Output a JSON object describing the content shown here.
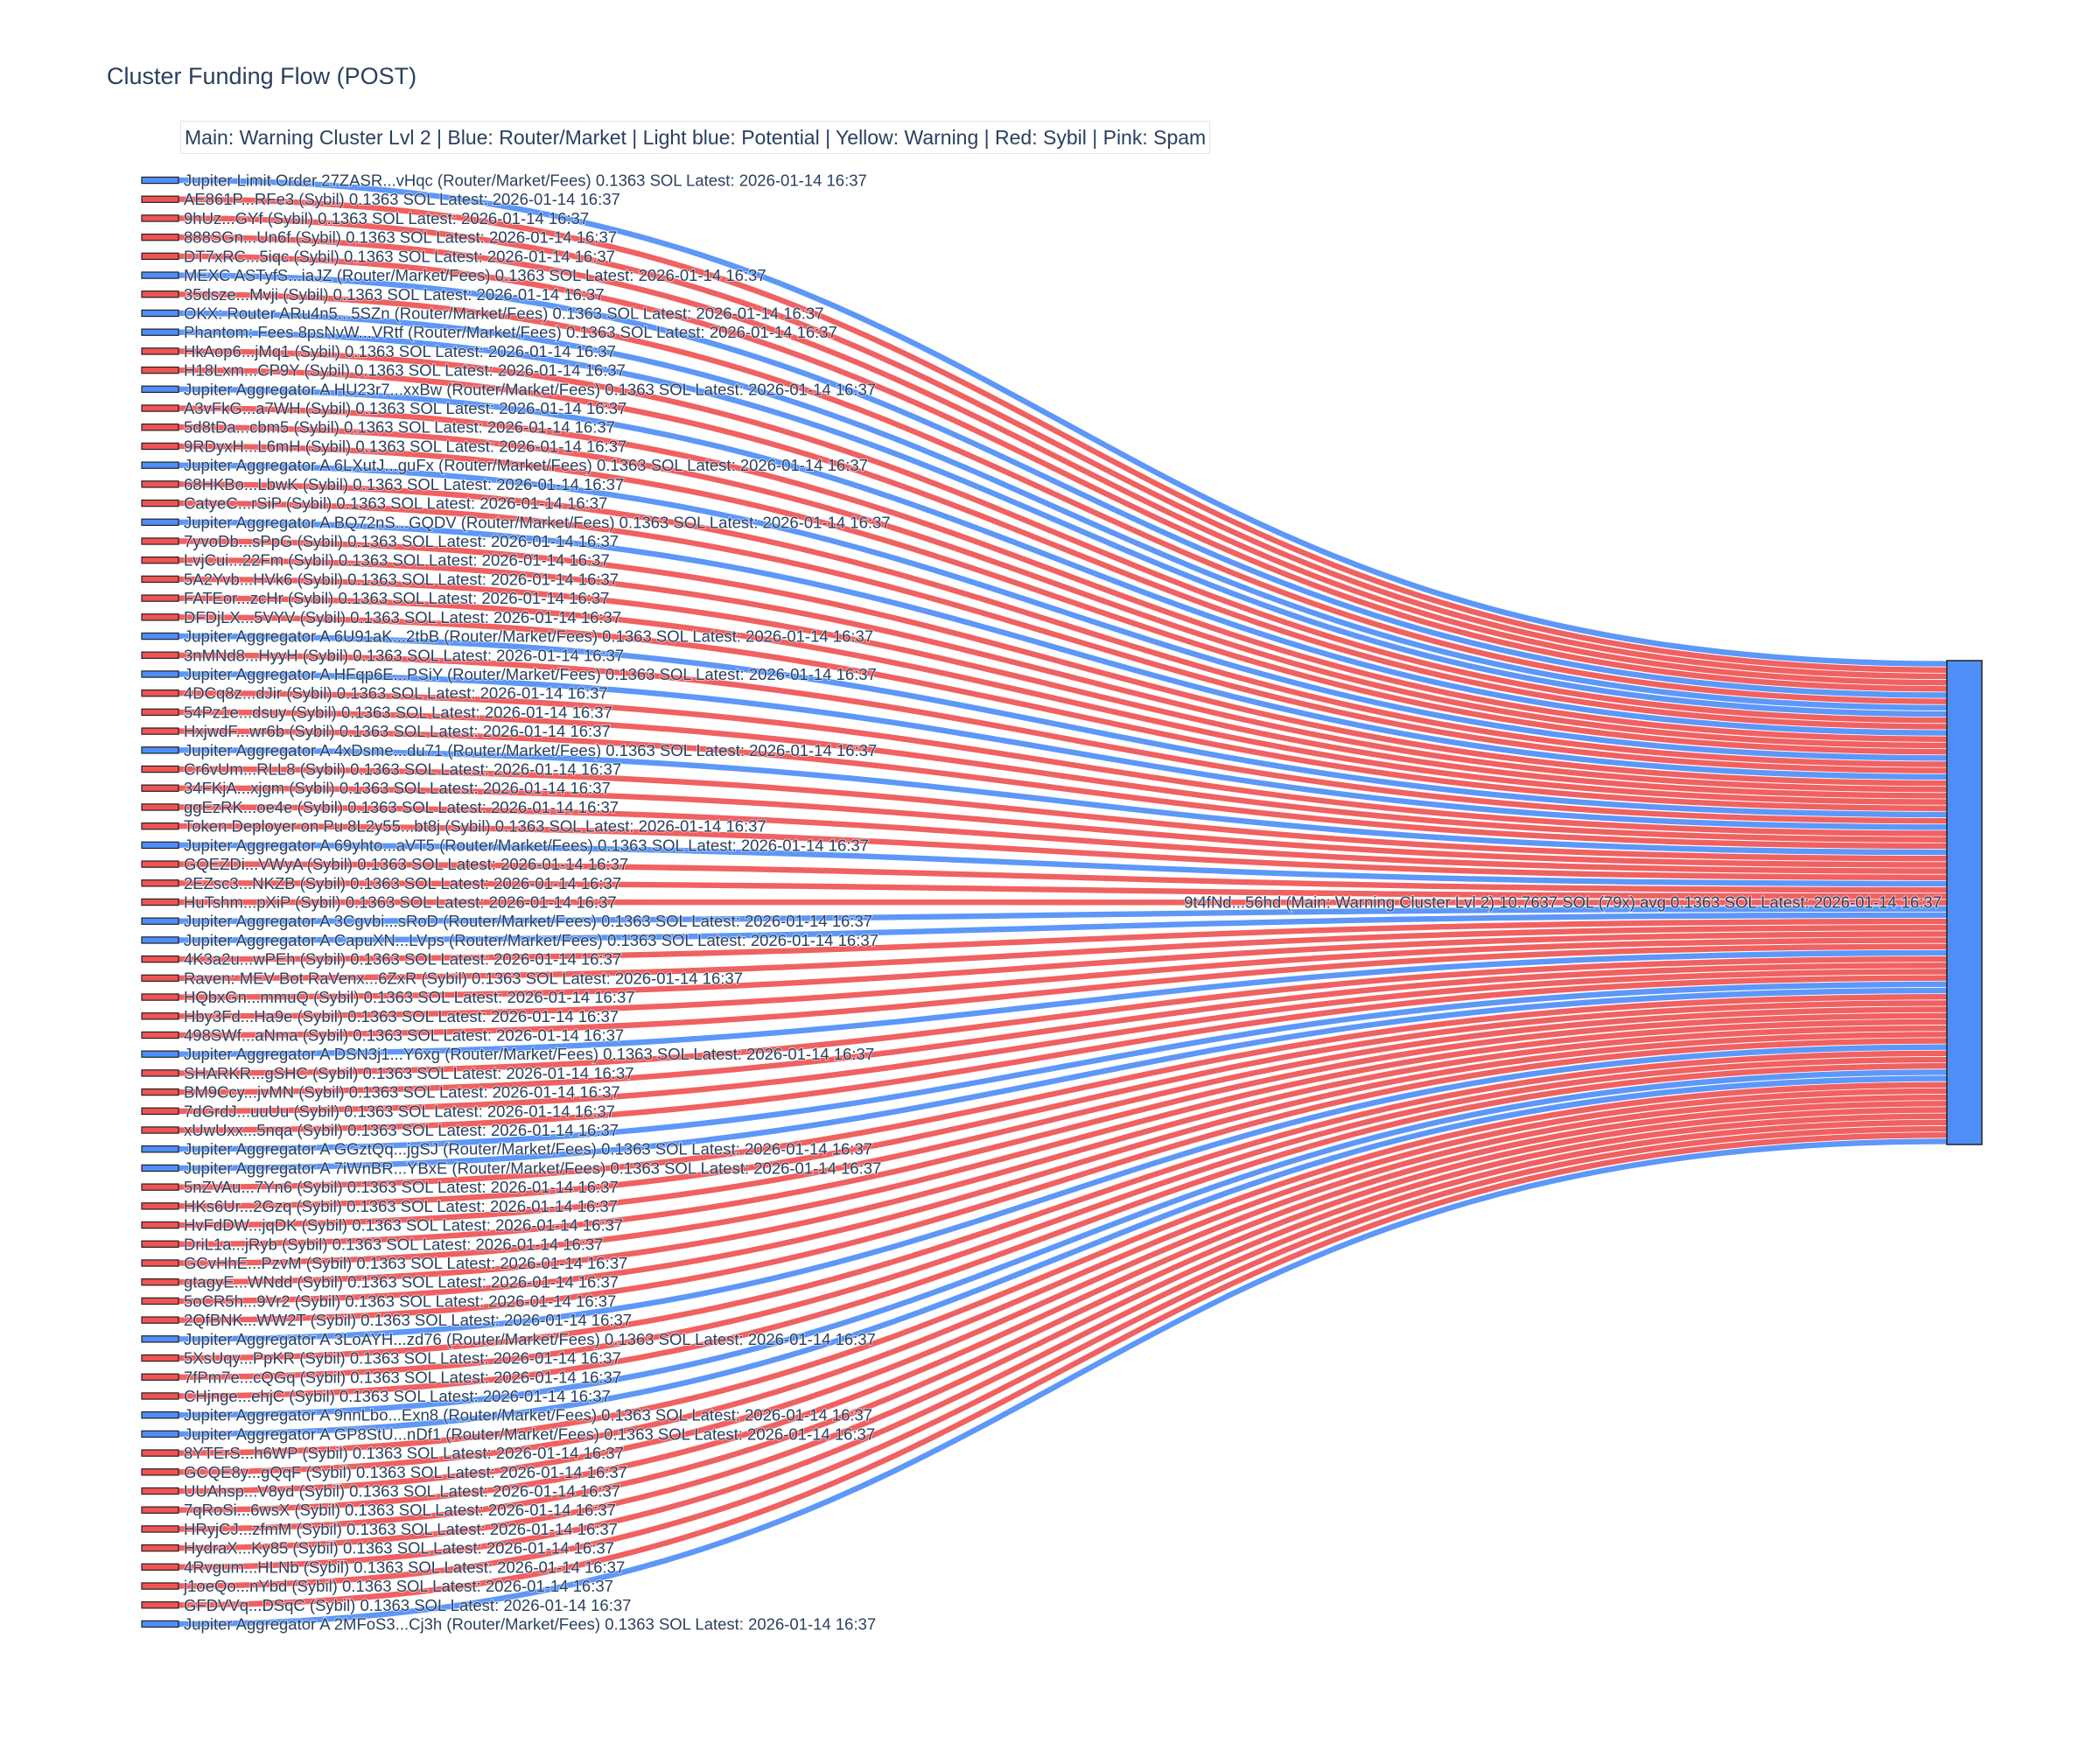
{
  "chart_data": {
    "type": "sankey",
    "title": "Cluster Funding Flow (POST)",
    "annotation": "Main: Warning Cluster Lvl 2  |  Blue: Router/Market | Light blue: Potential | Yellow: Warning | Red: Sybil | Pink: Spam",
    "colors": {
      "router": "#4f8ef7",
      "sybil": "#ef5454",
      "target": "#4f8ef7",
      "label": "#2a3f5f"
    },
    "target": {
      "label": "9t4fNd...56hd (Main: Warning Cluster Lvl 2) 10.7637 SOL (79x) avg 0.1363 SOL Latest: 2026-01-14 16:37",
      "type": "router"
    },
    "link_value": 0.1363,
    "sources": [
      {
        "label": "Jupiter Limit Order  27ZASR...vHqc (Router/Market/Fees) 0.1363 SOL Latest: 2026-01-14 16:37",
        "type": "router"
      },
      {
        "label": "AE861P...RFe3 (Sybil) 0.1363 SOL Latest: 2026-01-14 16:37",
        "type": "sybil"
      },
      {
        "label": "9hUz...GYf (Sybil) 0.1363 SOL Latest: 2026-01-14 16:37",
        "type": "sybil"
      },
      {
        "label": "888SGn...Un6f (Sybil) 0.1363 SOL Latest: 2026-01-14 16:37",
        "type": "sybil"
      },
      {
        "label": "DT7xRC...5iqc (Sybil) 0.1363 SOL Latest: 2026-01-14 16:37",
        "type": "sybil"
      },
      {
        "label": "MEXC ASTyfS...iaJZ (Router/Market/Fees) 0.1363 SOL Latest: 2026-01-14 16:37",
        "type": "router"
      },
      {
        "label": "35dsze...Mvji (Sybil) 0.1363 SOL Latest: 2026-01-14 16:37",
        "type": "sybil"
      },
      {
        "label": "OKX: Router ARu4n5...5SZn (Router/Market/Fees) 0.1363 SOL Latest: 2026-01-14 16:37",
        "type": "router"
      },
      {
        "label": "Phantom: Fees 8psNvW...VRtf (Router/Market/Fees) 0.1363 SOL Latest: 2026-01-14 16:37",
        "type": "router"
      },
      {
        "label": "HkAop6...jMq1 (Sybil) 0.1363 SOL Latest: 2026-01-14 16:37",
        "type": "sybil"
      },
      {
        "label": "H18Lxm...CP9Y (Sybil) 0.1363 SOL Latest: 2026-01-14 16:37",
        "type": "sybil"
      },
      {
        "label": "Jupiter Aggregator A HU23r7...xxBw (Router/Market/Fees) 0.1363 SOL Latest: 2026-01-14 16:37",
        "type": "router"
      },
      {
        "label": "A3vFkG...a7WH (Sybil) 0.1363 SOL Latest: 2026-01-14 16:37",
        "type": "sybil"
      },
      {
        "label": "5d8tDa...cbm5 (Sybil) 0.1363 SOL Latest: 2026-01-14 16:37",
        "type": "sybil"
      },
      {
        "label": "9RDyxH...L6mH (Sybil) 0.1363 SOL Latest: 2026-01-14 16:37",
        "type": "sybil"
      },
      {
        "label": "Jupiter Aggregator A 6LXutJ...guFx (Router/Market/Fees) 0.1363 SOL Latest: 2026-01-14 16:37",
        "type": "router"
      },
      {
        "label": "68HKBo...LbwK (Sybil) 0.1363 SOL Latest: 2026-01-14 16:37",
        "type": "sybil"
      },
      {
        "label": "CatyeC...rSiP (Sybil) 0.1363 SOL Latest: 2026-01-14 16:37",
        "type": "sybil"
      },
      {
        "label": "Jupiter Aggregator A BQ72nS...GQDV (Router/Market/Fees) 0.1363 SOL Latest: 2026-01-14 16:37",
        "type": "router"
      },
      {
        "label": "7yvoDb...sPpG (Sybil) 0.1363 SOL Latest: 2026-01-14 16:37",
        "type": "sybil"
      },
      {
        "label": "LvjCui...22Fm (Sybil) 0.1363 SOL Latest: 2026-01-14 16:37",
        "type": "sybil"
      },
      {
        "label": "5A2Yvb...HVk6 (Sybil) 0.1363 SOL Latest: 2026-01-14 16:37",
        "type": "sybil"
      },
      {
        "label": "FATEor...zcHr (Sybil) 0.1363 SOL Latest: 2026-01-14 16:37",
        "type": "sybil"
      },
      {
        "label": "DFDjLX...5VYV (Sybil) 0.1363 SOL Latest: 2026-01-14 16:37",
        "type": "sybil"
      },
      {
        "label": "Jupiter Aggregator A 6U91aK...2tbB (Router/Market/Fees) 0.1363 SOL Latest: 2026-01-14 16:37",
        "type": "router"
      },
      {
        "label": "3nMNd8...HyyH (Sybil) 0.1363 SOL Latest: 2026-01-14 16:37",
        "type": "sybil"
      },
      {
        "label": "Jupiter Aggregator A HFqp6E...PSiY (Router/Market/Fees) 0.1363 SOL Latest: 2026-01-14 16:37",
        "type": "router"
      },
      {
        "label": "4DCq8z...dJir (Sybil) 0.1363 SOL Latest: 2026-01-14 16:37",
        "type": "sybil"
      },
      {
        "label": "54Pz1e...dsuy (Sybil) 0.1363 SOL Latest: 2026-01-14 16:37",
        "type": "sybil"
      },
      {
        "label": "HxjwdF...wr6b (Sybil) 0.1363 SOL Latest: 2026-01-14 16:37",
        "type": "sybil"
      },
      {
        "label": "Jupiter Aggregator A 4xDsme...du71 (Router/Market/Fees) 0.1363 SOL Latest: 2026-01-14 16:37",
        "type": "router"
      },
      {
        "label": "Cr6vUm...RLL8 (Sybil) 0.1363 SOL Latest: 2026-01-14 16:37",
        "type": "sybil"
      },
      {
        "label": "34FKjA...xjgm (Sybil) 0.1363 SOL Latest: 2026-01-14 16:37",
        "type": "sybil"
      },
      {
        "label": "ggEzRK...oe4e (Sybil) 0.1363 SOL Latest: 2026-01-14 16:37",
        "type": "sybil"
      },
      {
        "label": "Token Deployer on Pu 8L2y55...bt8j (Sybil) 0.1363 SOL Latest: 2026-01-14 16:37",
        "type": "sybil"
      },
      {
        "label": "Jupiter Aggregator A 69yhto...aVT5 (Router/Market/Fees) 0.1363 SOL Latest: 2026-01-14 16:37",
        "type": "router"
      },
      {
        "label": "GQEZDi...VWyA (Sybil) 0.1363 SOL Latest: 2026-01-14 16:37",
        "type": "sybil"
      },
      {
        "label": "2EZsc3...NKZB (Sybil) 0.1363 SOL Latest: 2026-01-14 16:37",
        "type": "sybil"
      },
      {
        "label": "HuTshm...pXiP (Sybil) 0.1363 SOL Latest: 2026-01-14 16:37",
        "type": "sybil"
      },
      {
        "label": "Jupiter Aggregator A 3Cgvbi...sRoD (Router/Market/Fees) 0.1363 SOL Latest: 2026-01-14 16:37",
        "type": "router"
      },
      {
        "label": "Jupiter Aggregator A CapuXN...LVps (Router/Market/Fees) 0.1363 SOL Latest: 2026-01-14 16:37",
        "type": "router"
      },
      {
        "label": "4K3a2u...wPEh (Sybil) 0.1363 SOL Latest: 2026-01-14 16:37",
        "type": "sybil"
      },
      {
        "label": "Raven: MEV Bot RaVenx...6ZxR (Sybil) 0.1363 SOL Latest: 2026-01-14 16:37",
        "type": "sybil"
      },
      {
        "label": "HQbxGn...mmuQ (Sybil) 0.1363 SOL Latest: 2026-01-14 16:37",
        "type": "sybil"
      },
      {
        "label": "Hby3Fd...Ha9e (Sybil) 0.1363 SOL Latest: 2026-01-14 16:37",
        "type": "sybil"
      },
      {
        "label": "498SWf...aNma (Sybil) 0.1363 SOL Latest: 2026-01-14 16:37",
        "type": "sybil"
      },
      {
        "label": "Jupiter Aggregator A DSN3j1...Y6xg (Router/Market/Fees) 0.1363 SOL Latest: 2026-01-14 16:37",
        "type": "router"
      },
      {
        "label": "SHARKR...gSHC (Sybil) 0.1363 SOL Latest: 2026-01-14 16:37",
        "type": "sybil"
      },
      {
        "label": "BM9Ccy...jvMN (Sybil) 0.1363 SOL Latest: 2026-01-14 16:37",
        "type": "sybil"
      },
      {
        "label": "7dGrdJ...uuUu (Sybil) 0.1363 SOL Latest: 2026-01-14 16:37",
        "type": "sybil"
      },
      {
        "label": "xUwUxx...5nqa (Sybil) 0.1363 SOL Latest: 2026-01-14 16:37",
        "type": "sybil"
      },
      {
        "label": "Jupiter Aggregator A GGztQq...jgSJ (Router/Market/Fees) 0.1363 SOL Latest: 2026-01-14 16:37",
        "type": "router"
      },
      {
        "label": "Jupiter Aggregator A 7iWnBR...YBxE (Router/Market/Fees) 0.1363 SOL Latest: 2026-01-14 16:37",
        "type": "router"
      },
      {
        "label": "5nZVAu...7Yn6 (Sybil) 0.1363 SOL Latest: 2026-01-14 16:37",
        "type": "sybil"
      },
      {
        "label": "HKs6Ur...2Gzq (Sybil) 0.1363 SOL Latest: 2026-01-14 16:37",
        "type": "sybil"
      },
      {
        "label": "HvFdDW...jqDK (Sybil) 0.1363 SOL Latest: 2026-01-14 16:37",
        "type": "sybil"
      },
      {
        "label": "DriL1a...jRyb (Sybil) 0.1363 SOL Latest: 2026-01-14 16:37",
        "type": "sybil"
      },
      {
        "label": "GCvHhE...PzvM (Sybil) 0.1363 SOL Latest: 2026-01-14 16:37",
        "type": "sybil"
      },
      {
        "label": "gtagyE...WNdd (Sybil) 0.1363 SOL Latest: 2026-01-14 16:37",
        "type": "sybil"
      },
      {
        "label": "5oCR5h...9Vr2 (Sybil) 0.1363 SOL Latest: 2026-01-14 16:37",
        "type": "sybil"
      },
      {
        "label": "2QfBNK...WW2T (Sybil) 0.1363 SOL Latest: 2026-01-14 16:37",
        "type": "sybil"
      },
      {
        "label": "Jupiter Aggregator A 3LoAYH...zd76 (Router/Market/Fees) 0.1363 SOL Latest: 2026-01-14 16:37",
        "type": "router"
      },
      {
        "label": "5XsUqy...PpKR (Sybil) 0.1363 SOL Latest: 2026-01-14 16:37",
        "type": "sybil"
      },
      {
        "label": "7fPm7e...cQGq (Sybil) 0.1363 SOL Latest: 2026-01-14 16:37",
        "type": "sybil"
      },
      {
        "label": "CHjnge...ehjC (Sybil) 0.1363 SOL Latest: 2026-01-14 16:37",
        "type": "sybil"
      },
      {
        "label": "Jupiter Aggregator A 9nnLbo...Exn8 (Router/Market/Fees) 0.1363 SOL Latest: 2026-01-14 16:37",
        "type": "router"
      },
      {
        "label": "Jupiter Aggregator A GP8StU...nDf1 (Router/Market/Fees) 0.1363 SOL Latest: 2026-01-14 16:37",
        "type": "router"
      },
      {
        "label": "8YTErS...h6WP (Sybil) 0.1363 SOL Latest: 2026-01-14 16:37",
        "type": "sybil"
      },
      {
        "label": "GCQE8y...gQqF (Sybil) 0.1363 SOL Latest: 2026-01-14 16:37",
        "type": "sybil"
      },
      {
        "label": "UUAhsp...V8yd (Sybil) 0.1363 SOL Latest: 2026-01-14 16:37",
        "type": "sybil"
      },
      {
        "label": "7qRoSi...6wsX (Sybil) 0.1363 SOL Latest: 2026-01-14 16:37",
        "type": "sybil"
      },
      {
        "label": "HRyjCJ...zfmM (Sybil) 0.1363 SOL Latest: 2026-01-14 16:37",
        "type": "sybil"
      },
      {
        "label": "HydraX...Ky85 (Sybil) 0.1363 SOL Latest: 2026-01-14 16:37",
        "type": "sybil"
      },
      {
        "label": "4Rvgum...HLNb (Sybil) 0.1363 SOL Latest: 2026-01-14 16:37",
        "type": "sybil"
      },
      {
        "label": "j1oeQo...nYbd (Sybil) 0.1363 SOL Latest: 2026-01-14 16:37",
        "type": "sybil"
      },
      {
        "label": "GFDVVq...DSqC (Sybil) 0.1363 SOL Latest: 2026-01-14 16:37",
        "type": "sybil"
      },
      {
        "label": "Jupiter Aggregator A 2MFoS3...Cj3h (Router/Market/Fees) 0.1363 SOL Latest: 2026-01-14 16:37",
        "type": "router"
      }
    ]
  }
}
